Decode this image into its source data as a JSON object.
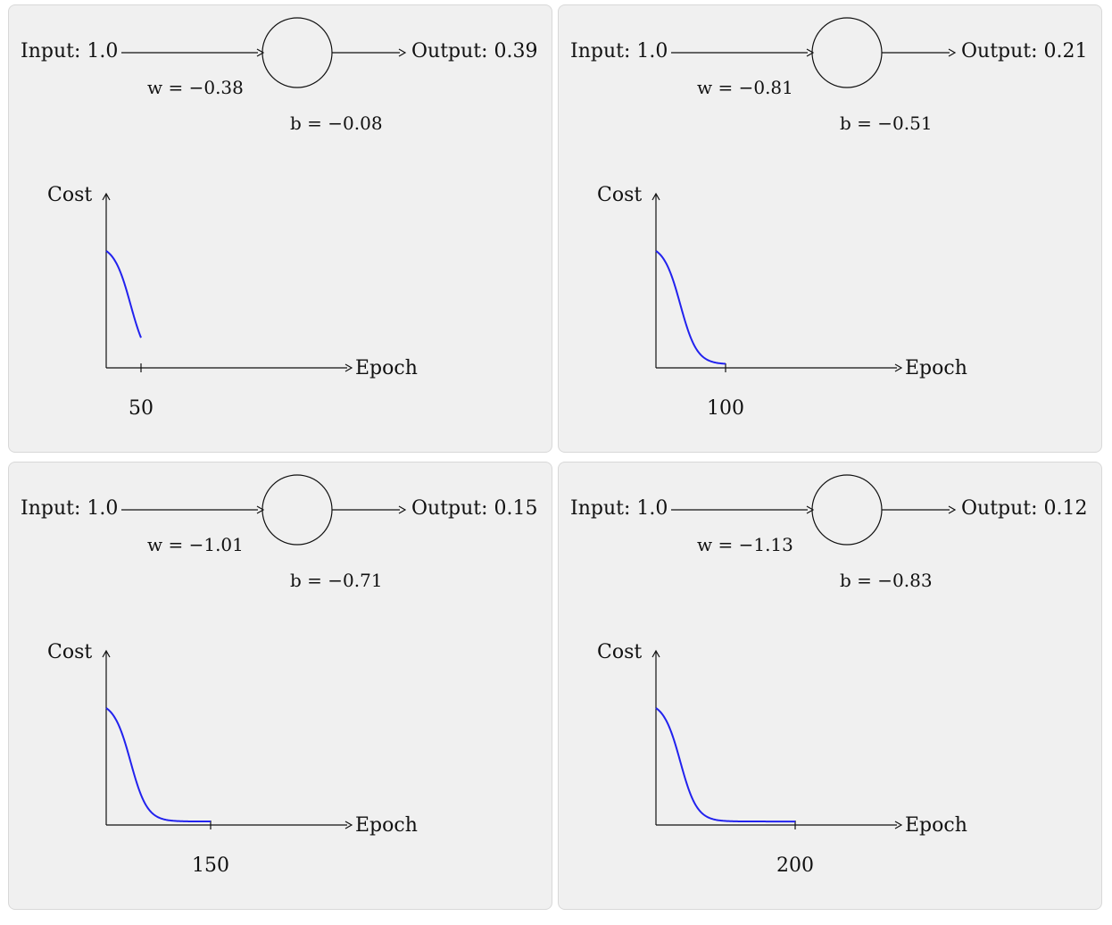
{
  "colors": {
    "curve": "#2222ee",
    "panel_background": "#f0f0f0",
    "stroke": "#111111"
  },
  "panels": [
    {
      "input_text": "Input: 1.0",
      "output_text": "Output: 0.39",
      "w_label": "w = −0.38",
      "b_label": "b = −0.08",
      "cost_label": "Cost",
      "epoch_label": "Epoch",
      "tick_label": "50",
      "epoch": 50,
      "chart_data": {
        "type": "line",
        "xlabel": "Epoch",
        "ylabel": "Cost",
        "x": [
          0,
          50
        ],
        "tick": 50
      }
    },
    {
      "input_text": "Input: 1.0",
      "output_text": "Output: 0.21",
      "w_label": "w = −0.81",
      "b_label": "b = −0.51",
      "cost_label": "Cost",
      "epoch_label": "Epoch",
      "tick_label": "100",
      "epoch": 100,
      "chart_data": {
        "type": "line",
        "xlabel": "Epoch",
        "ylabel": "Cost",
        "x": [
          0,
          100
        ],
        "tick": 100
      }
    },
    {
      "input_text": "Input: 1.0",
      "output_text": "Output: 0.15",
      "w_label": "w = −1.01",
      "b_label": "b = −0.71",
      "cost_label": "Cost",
      "epoch_label": "Epoch",
      "tick_label": "150",
      "epoch": 150,
      "chart_data": {
        "type": "line",
        "xlabel": "Epoch",
        "ylabel": "Cost",
        "x": [
          0,
          150
        ],
        "tick": 150
      }
    },
    {
      "input_text": "Input: 1.0",
      "output_text": "Output: 0.12",
      "w_label": "w = −1.13",
      "b_label": "b = −0.83",
      "cost_label": "Cost",
      "epoch_label": "Epoch",
      "tick_label": "200",
      "epoch": 200,
      "chart_data": {
        "type": "line",
        "xlabel": "Epoch",
        "ylabel": "Cost",
        "x": [
          0,
          200
        ],
        "tick": 200
      }
    }
  ]
}
